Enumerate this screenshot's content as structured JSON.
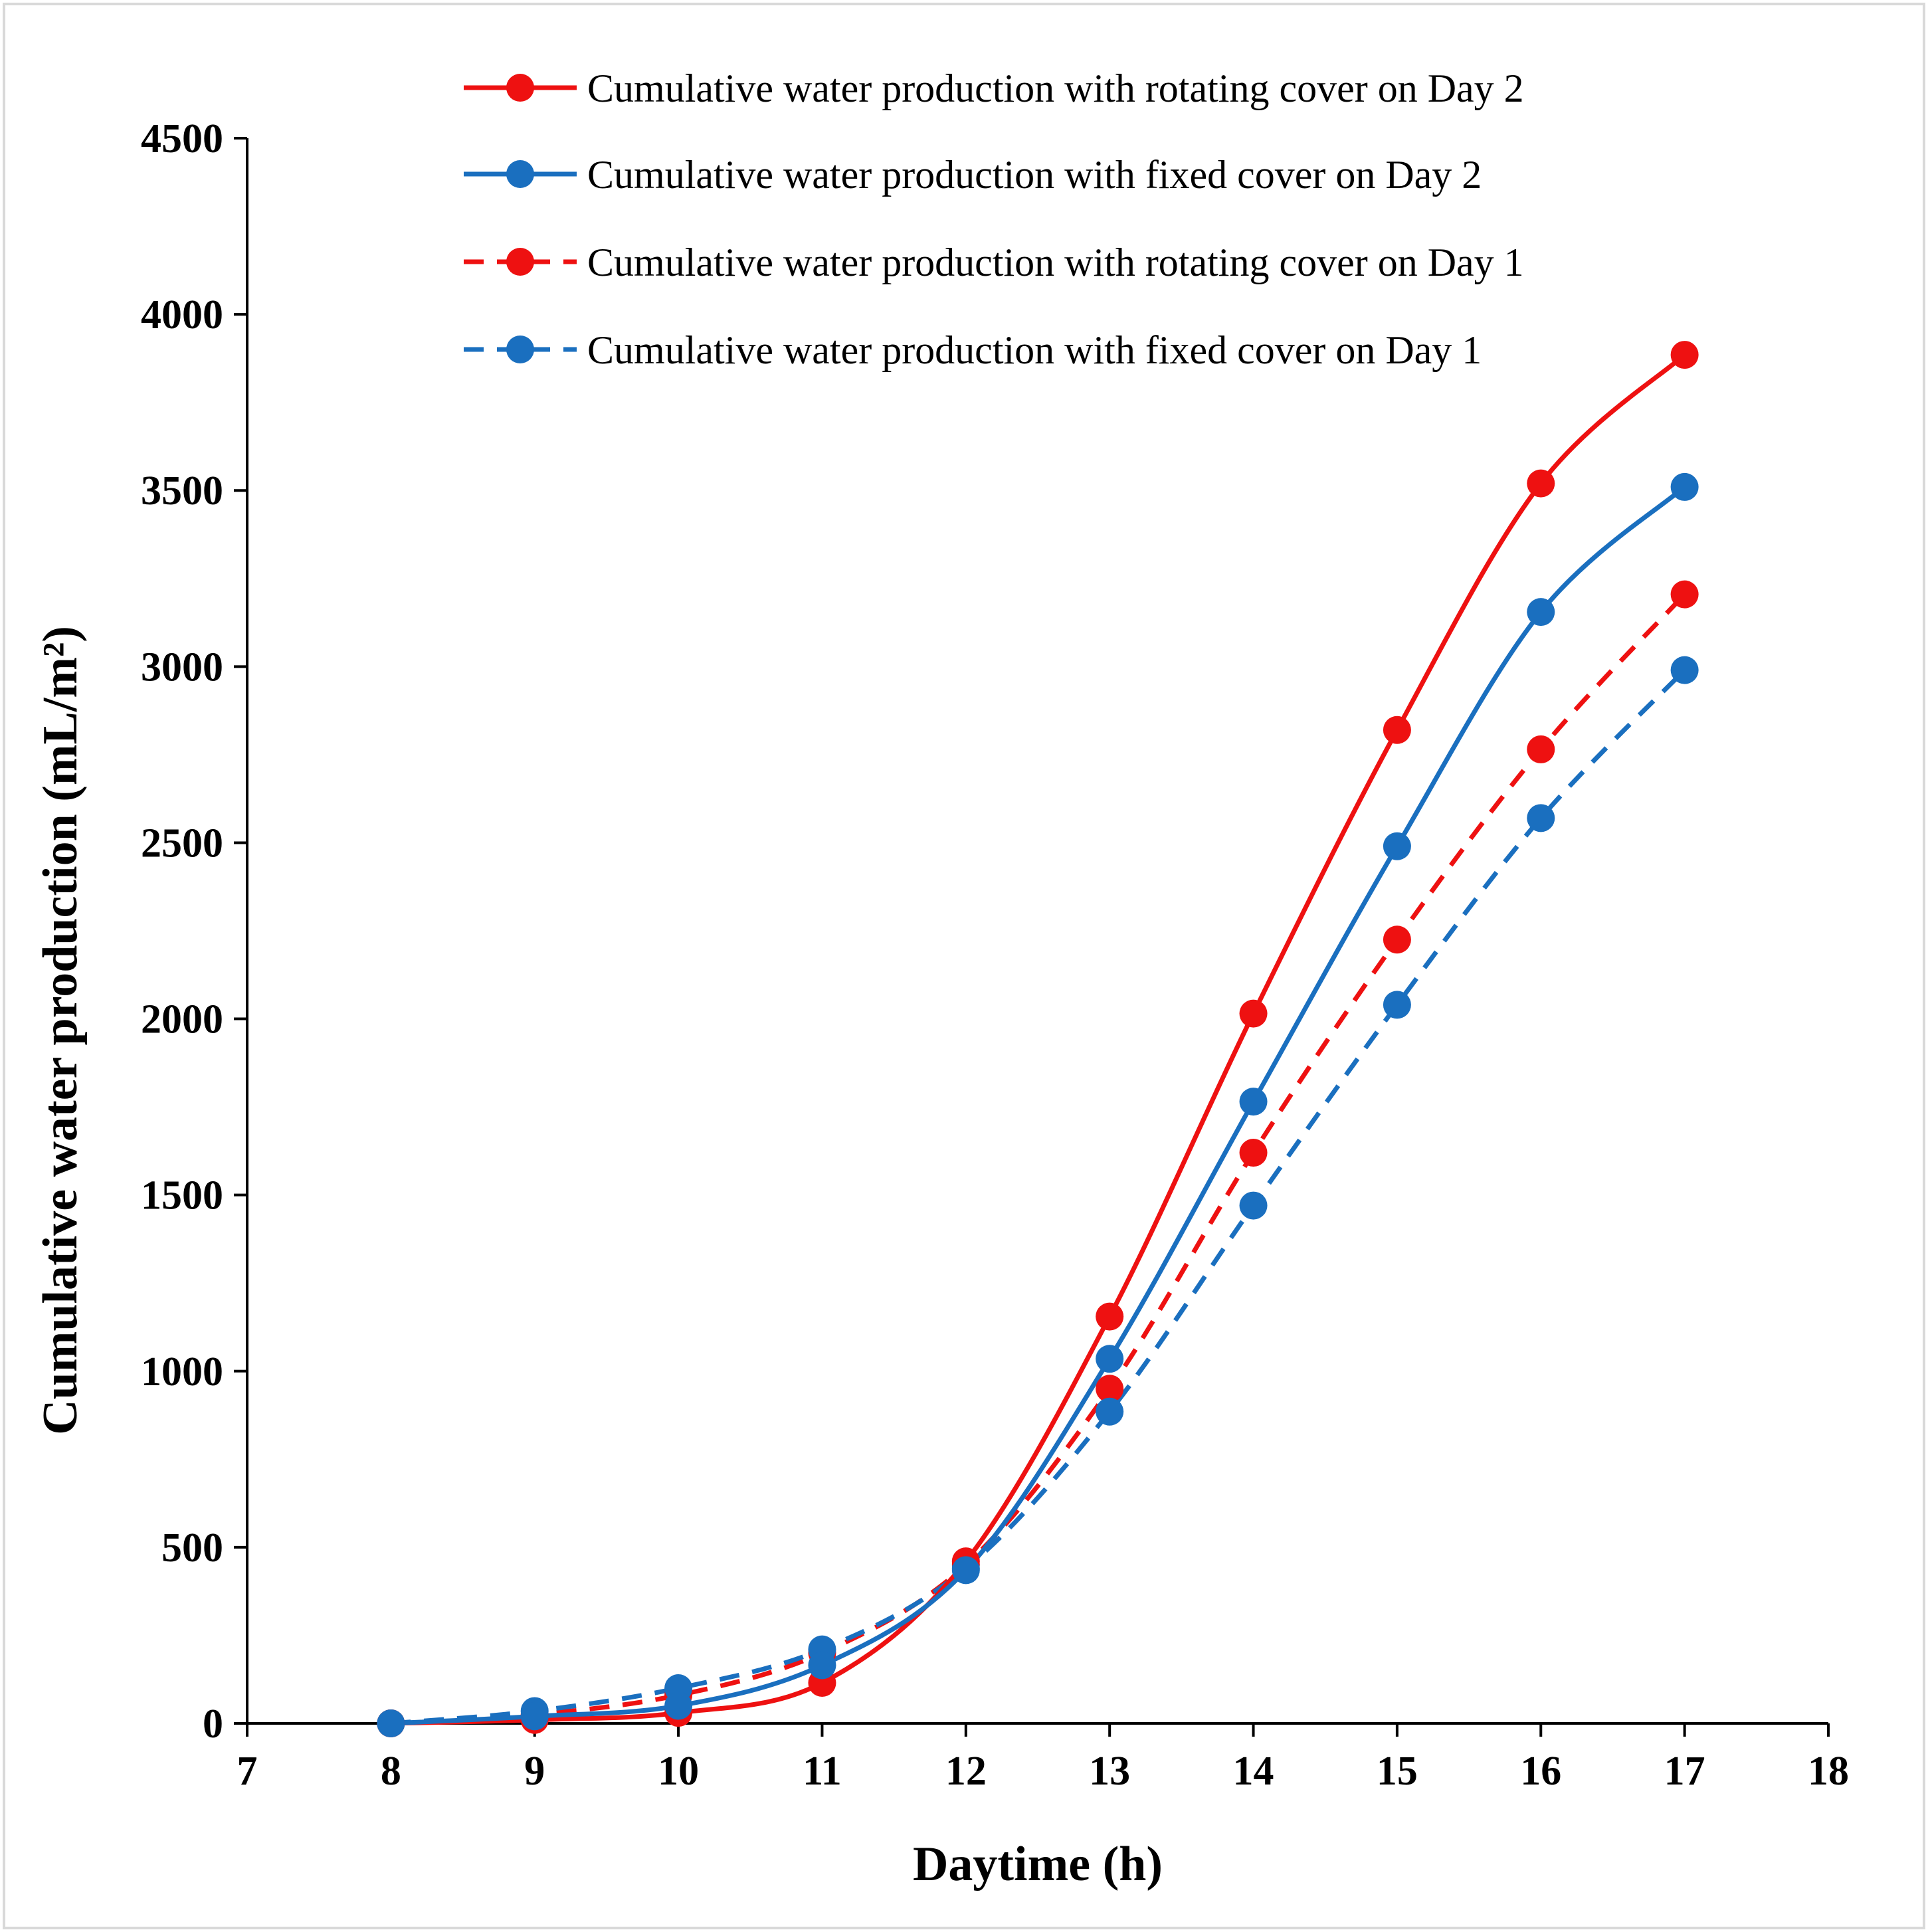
{
  "chart_data": {
    "type": "line",
    "xlabel": "Daytime (h)",
    "ylabel": "Cumulative water production (mL/m²)",
    "xlim": [
      7,
      18
    ],
    "ylim": [
      0,
      4500
    ],
    "xticks": [
      "7",
      "8",
      "9",
      "10",
      "11",
      "12",
      "13",
      "14",
      "15",
      "16",
      "17",
      "18"
    ],
    "yticks": [
      "0",
      "500",
      "1000",
      "1500",
      "2000",
      "2500",
      "3000",
      "3500",
      "4000",
      "4500"
    ],
    "grid": false,
    "legend_position": "top",
    "x": [
      8,
      9,
      10,
      11,
      12,
      13,
      14,
      15,
      16,
      17
    ],
    "series": [
      {
        "name": "Cumulative water production with rotating cover on Day 2",
        "color": "#ee1111",
        "dashed": false,
        "values": [
          0,
          10,
          30,
          115,
          460,
          1155,
          2015,
          2820,
          3520,
          3885
        ]
      },
      {
        "name": "Cumulative water production with fixed cover on Day 2",
        "color": "#1a6fbf",
        "dashed": false,
        "values": [
          0,
          20,
          50,
          165,
          435,
          1035,
          1765,
          2490,
          3155,
          3510
        ]
      },
      {
        "name": "Cumulative water production with rotating cover on Day 1",
        "color": "#ee1111",
        "dashed": true,
        "values": [
          0,
          25,
          80,
          200,
          450,
          950,
          1620,
          2225,
          2765,
          3205
        ]
      },
      {
        "name": "Cumulative water production with fixed cover on Day 1",
        "color": "#1a6fbf",
        "dashed": true,
        "values": [
          0,
          35,
          100,
          210,
          440,
          885,
          1470,
          2040,
          2570,
          2990
        ]
      }
    ]
  }
}
